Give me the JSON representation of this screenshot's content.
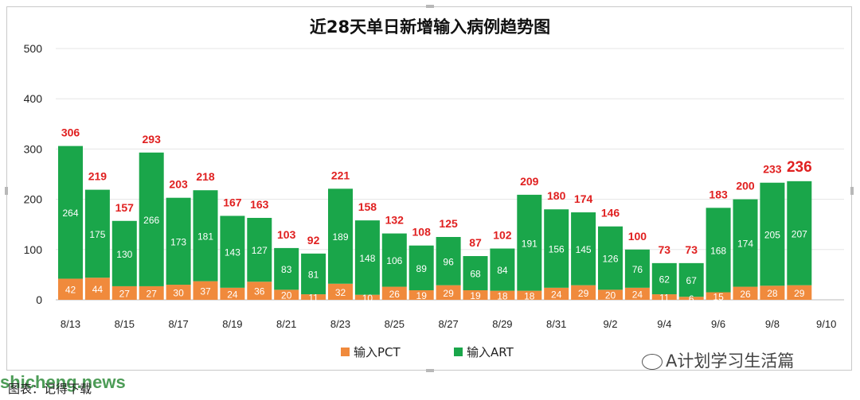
{
  "chart_data": {
    "type": "bar",
    "stacked": true,
    "title": "近28天单日新增输入病例趋势图",
    "categories": [
      "8/13",
      "8/14",
      "8/15",
      "8/16",
      "8/17",
      "8/18",
      "8/19",
      "8/20",
      "8/21",
      "8/22",
      "8/23",
      "8/24",
      "8/25",
      "8/26",
      "8/27",
      "8/28",
      "8/29",
      "8/30",
      "8/31",
      "9/1",
      "9/2",
      "9/3",
      "9/4",
      "9/5",
      "9/6",
      "9/7",
      "9/8",
      "9/9"
    ],
    "x_tick_labels": [
      "8/13",
      "8/15",
      "8/17",
      "8/19",
      "8/21",
      "8/23",
      "8/25",
      "8/27",
      "8/29",
      "8/31",
      "9/2",
      "9/4",
      "9/6",
      "9/8",
      "9/10"
    ],
    "series": [
      {
        "name": "输入PCT",
        "color": "#f08a3c",
        "values": [
          42,
          44,
          27,
          27,
          30,
          37,
          24,
          36,
          20,
          11,
          32,
          10,
          26,
          19,
          29,
          19,
          18,
          18,
          24,
          29,
          20,
          24,
          11,
          6,
          15,
          26,
          28,
          29
        ]
      },
      {
        "name": "输入ART",
        "color": "#1aa64a",
        "values": [
          264,
          175,
          130,
          266,
          173,
          181,
          143,
          127,
          83,
          81,
          189,
          148,
          106,
          89,
          96,
          68,
          84,
          191,
          156,
          145,
          126,
          76,
          62,
          67,
          168,
          174,
          205,
          207
        ]
      }
    ],
    "totals": [
      306,
      219,
      157,
      293,
      203,
      218,
      167,
      163,
      103,
      92,
      221,
      158,
      132,
      108,
      125,
      87,
      102,
      209,
      180,
      174,
      146,
      100,
      73,
      73,
      183,
      200,
      233,
      236
    ],
    "total_color": "#e02020",
    "ylim": [
      0,
      500
    ],
    "yticks": [
      "0",
      "100",
      "200",
      "300",
      "400",
      "500"
    ],
    "grid": true,
    "legend_position": "bottom"
  },
  "footer": {
    "site": "shicheng.news",
    "source": "图表：记得下载",
    "watermark": "A计划学习生活篇"
  }
}
